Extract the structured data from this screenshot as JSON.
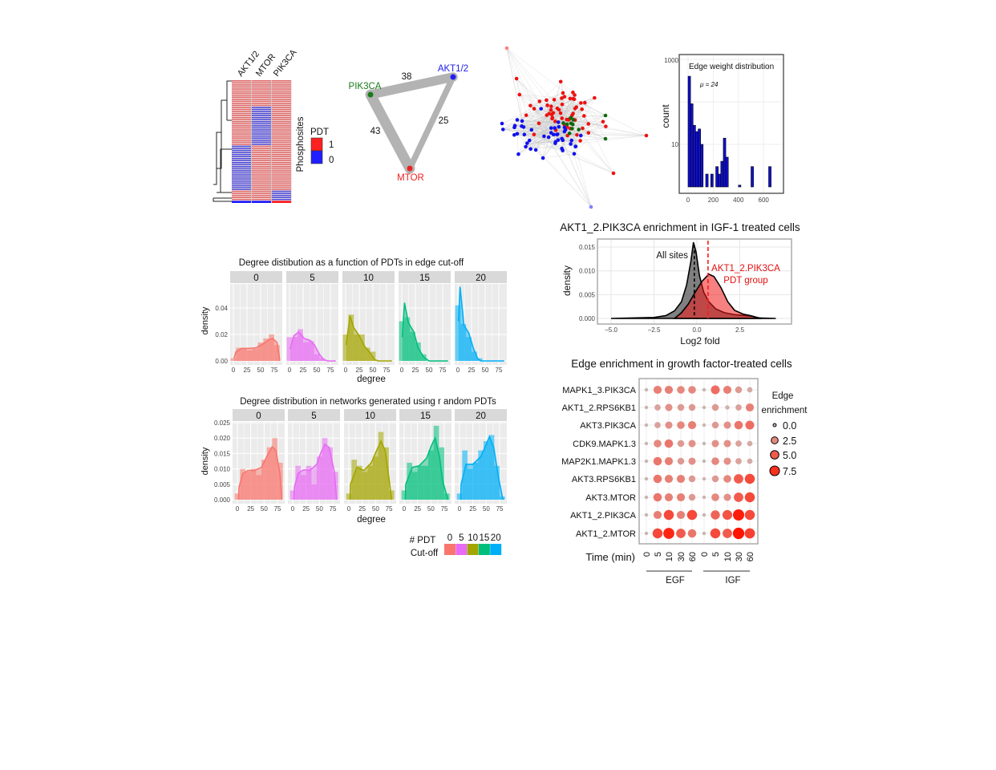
{
  "chart_data": [
    {
      "type": "heatmap",
      "columns": [
        "AKT1/2",
        "MTOR",
        "PIK3CA"
      ],
      "ylabel": "Phosphosites",
      "legend": {
        "title": "PDT",
        "entries": [
          {
            "label": "1",
            "color": "#ff2020"
          },
          {
            "label": "0",
            "color": "#2020ff"
          }
        ]
      },
      "colors": {
        "1": "#e06a6a",
        "0": "#4a4ad8"
      },
      "runs": {
        "AKT1/2": [
          [
            1,
            32
          ],
          [
            0,
            22
          ],
          [
            1,
            5
          ],
          [
            0,
            1
          ]
        ],
        "MTOR": [
          [
            1,
            13
          ],
          [
            0,
            19
          ],
          [
            1,
            27
          ],
          [
            0,
            1
          ]
        ],
        "PIK3CA": [
          [
            1,
            54
          ],
          [
            0,
            5
          ],
          [
            1,
            1
          ]
        ]
      }
    },
    {
      "type": "network",
      "nodes": [
        {
          "label": "PIK3CA",
          "color": "#1a7a1a"
        },
        {
          "label": "AKT1/2",
          "color": "#2020ee"
        },
        {
          "label": "MTOR",
          "color": "#ee2020"
        }
      ],
      "edges": [
        {
          "from": "PIK3CA",
          "to": "AKT1/2",
          "weight": "38"
        },
        {
          "from": "AKT1/2",
          "to": "MTOR",
          "weight": "25"
        },
        {
          "from": "PIK3CA",
          "to": "MTOR",
          "weight": "43"
        }
      ]
    },
    {
      "type": "network",
      "node_colors": [
        "#ee1111",
        "#1111ee",
        "#0a6a0a"
      ]
    },
    {
      "type": "bar",
      "title": "Edge weight distribution",
      "annotation": "μ  = 24",
      "ylabel": "count",
      "yscale": "log",
      "yticks": [
        "10",
        "1000"
      ],
      "xticks": [
        "0",
        "200",
        "400",
        "600"
      ],
      "bar_color": "#1010d0",
      "bins": [
        [
          0,
          400
        ],
        [
          20,
          90
        ],
        [
          40,
          28
        ],
        [
          60,
          20
        ],
        [
          80,
          23
        ],
        [
          100,
          10
        ],
        [
          140,
          2
        ],
        [
          180,
          2
        ],
        [
          220,
          3
        ],
        [
          240,
          2
        ],
        [
          260,
          4
        ],
        [
          280,
          14
        ],
        [
          300,
          5
        ],
        [
          400,
          1.1
        ],
        [
          500,
          3
        ],
        [
          640,
          3
        ]
      ]
    },
    {
      "type": "area",
      "title": "AKT1_2.PIK3CA enrichment in IGF-1 treated cells",
      "xlabel": "Log2 fold",
      "ylabel": "density",
      "xticks": [
        "−5.0",
        "−2.5",
        "0.0",
        "2.5"
      ],
      "yticks": [
        "0.000",
        "0.005",
        "0.010",
        "0.015"
      ],
      "series": [
        {
          "name": "All sites",
          "color": "#555555",
          "mean": -0.15,
          "points": [
            [
              -5,
              0
            ],
            [
              -2.5,
              0.0002
            ],
            [
              -1.8,
              0.0006
            ],
            [
              -1.3,
              0.0016
            ],
            [
              -0.9,
              0.0035
            ],
            [
              -0.6,
              0.007
            ],
            [
              -0.35,
              0.012
            ],
            [
              -0.2,
              0.016
            ],
            [
              -0.05,
              0.014
            ],
            [
              0.15,
              0.009
            ],
            [
              0.4,
              0.0055
            ],
            [
              0.7,
              0.0035
            ],
            [
              1.1,
              0.002
            ],
            [
              1.6,
              0.0012
            ],
            [
              2.2,
              0.0008
            ],
            [
              2.8,
              0.0006
            ],
            [
              3.2,
              0.0005
            ],
            [
              3.6,
              0.0001
            ],
            [
              4.6,
              0
            ]
          ]
        },
        {
          "name": "AKT1_2.PIK3CA\nPDT group",
          "label_lines": [
            "AKT1_2.PIK3CA",
            "PDT group"
          ],
          "color": "#e81010",
          "mean": 0.65,
          "points": [
            [
              -1.3,
              0
            ],
            [
              -0.9,
              0.0012
            ],
            [
              -0.5,
              0.003
            ],
            [
              -0.1,
              0.0055
            ],
            [
              0.3,
              0.0078
            ],
            [
              0.7,
              0.0093
            ],
            [
              1.0,
              0.0088
            ],
            [
              1.4,
              0.0065
            ],
            [
              1.8,
              0.0035
            ],
            [
              2.2,
              0.0017
            ],
            [
              2.7,
              0.0009
            ],
            [
              3.1,
              0.0006
            ],
            [
              3.5,
              0.0002
            ],
            [
              3.8,
              0
            ]
          ]
        }
      ]
    },
    {
      "type": "scatter",
      "title": "Edge enrichment in growth factor-treated cells",
      "xlabel": "Time (min)",
      "groups": [
        "EGF",
        "IGF"
      ],
      "times": [
        "0",
        "5",
        "10",
        "30",
        "60"
      ],
      "rows": [
        "MAPK1_3.PIK3CA",
        "AKT1_2.RPS6KB1",
        "AKT3.PIK3CA",
        "CDK9.MAPK1.3",
        "MAP2K1.MAPK1.3",
        "AKT3.RPS6KB1",
        "AKT3.MTOR",
        "AKT1_2.PIK3CA",
        "AKT1_2.MTOR"
      ],
      "values": [
        [
          0,
          3,
          3,
          2.5,
          2.5,
          0,
          4,
          3,
          1.5,
          0.5
        ],
        [
          0,
          1,
          2,
          1.5,
          1.5,
          0,
          1.5,
          0.1,
          1,
          3
        ],
        [
          0,
          1,
          2,
          2.5,
          3,
          0,
          1.5,
          2,
          3.5,
          4
        ],
        [
          0,
          2.5,
          3.5,
          1.5,
          2,
          0,
          2,
          2,
          1,
          0.5
        ],
        [
          0,
          3.5,
          3,
          1.5,
          2,
          0,
          2.5,
          2,
          1,
          0.5
        ],
        [
          0,
          3.5,
          3,
          3,
          1.5,
          0,
          1.5,
          2.5,
          5,
          6
        ],
        [
          0,
          3.5,
          3,
          3,
          1.5,
          0,
          2.5,
          2,
          5,
          6
        ],
        [
          0,
          3,
          6,
          3,
          6,
          0,
          4.5,
          5.5,
          8.5,
          6
        ],
        [
          0,
          6,
          8,
          5,
          3.5,
          0,
          6,
          5,
          9,
          6.5
        ]
      ],
      "legend": {
        "title_lines": [
          "Edge",
          "enrichment"
        ],
        "values": [
          "0.0",
          "2.5",
          "5.0",
          "7.5"
        ]
      }
    },
    {
      "type": "bar",
      "title": "Degree distibution as a function of PDTs in edge cut-off",
      "xlabel": "degree",
      "ylabel": "density",
      "yticks": [
        "0.00",
        "0.02",
        "0.04"
      ],
      "ytick_values": [
        0,
        0.02,
        0.04
      ],
      "xticks": [
        "0",
        "25",
        "50",
        "75"
      ],
      "facets": [
        {
          "label": "0",
          "color": "#F8766D",
          "hist": [
            0.002,
            0.01,
            0.01,
            0.008,
            0.009,
            0.014,
            0.017,
            0.02,
            0.012
          ],
          "curve": [
            [
              1,
              0.002
            ],
            [
              5,
              0.007
            ],
            [
              15,
              0.0095
            ],
            [
              30,
              0.0095
            ],
            [
              42,
              0.01
            ],
            [
              55,
              0.013
            ],
            [
              65,
              0.016
            ],
            [
              72,
              0.017
            ],
            [
              80,
              0.014
            ],
            [
              84,
              0.004
            ],
            [
              85,
              0
            ]
          ]
        },
        {
          "label": "5",
          "color": "#E76BF3",
          "hist": [
            0.018,
            0.018,
            0.024,
            0.014,
            0.015,
            0.005,
            0.002,
            0,
            0
          ],
          "curve": [
            [
              1,
              0.009
            ],
            [
              8,
              0.019
            ],
            [
              17,
              0.022
            ],
            [
              27,
              0.017
            ],
            [
              38,
              0.0155
            ],
            [
              46,
              0.012
            ],
            [
              55,
              0.005
            ],
            [
              63,
              0.001
            ],
            [
              70,
              0
            ],
            [
              85,
              0
            ]
          ]
        },
        {
          "label": "10",
          "color": "#A3A500",
          "hist": [
            0.02,
            0.035,
            0.02,
            0.02,
            0.01,
            0.007,
            0,
            0,
            0
          ],
          "curve": [
            [
              1,
              0.012
            ],
            [
              8,
              0.034
            ],
            [
              15,
              0.025
            ],
            [
              25,
              0.019
            ],
            [
              35,
              0.011
            ],
            [
              45,
              0.006
            ],
            [
              53,
              0.001
            ],
            [
              60,
              0
            ],
            [
              85,
              0
            ]
          ]
        },
        {
          "label": "15",
          "color": "#00BF7D",
          "hist": [
            0.03,
            0.033,
            0.022,
            0.014,
            0.005,
            0,
            0,
            0,
            0
          ],
          "curve": [
            [
              1,
              0.018
            ],
            [
              5,
              0.044
            ],
            [
              12,
              0.029
            ],
            [
              22,
              0.022
            ],
            [
              30,
              0.01
            ],
            [
              40,
              0.003
            ],
            [
              50,
              0
            ],
            [
              85,
              0
            ]
          ]
        },
        {
          "label": "20",
          "color": "#00B0F6",
          "hist": [
            0.042,
            0.028,
            0.018,
            0.007,
            0.002,
            0,
            0,
            0,
            0
          ],
          "curve": [
            [
              1,
              0.03
            ],
            [
              4,
              0.056
            ],
            [
              11,
              0.027
            ],
            [
              20,
              0.021
            ],
            [
              28,
              0.01
            ],
            [
              36,
              0.002
            ],
            [
              42,
              0
            ],
            [
              85,
              0
            ]
          ]
        }
      ]
    },
    {
      "type": "bar",
      "title": "Degree distribution in networks generated using r andom PDTs",
      "xlabel": "degree",
      "ylabel": "density",
      "yticks": [
        "0.000",
        "0.005",
        "0.010",
        "0.015",
        "0.020",
        "0.025"
      ],
      "ytick_values": [
        0,
        0.005,
        0.01,
        0.015,
        0.02,
        0.025
      ],
      "xticks": [
        "0",
        "25",
        "50",
        "75"
      ],
      "facets": [
        {
          "label": "0",
          "color": "#F8766D",
          "hist": [
            0.002,
            0.01,
            0.009,
            0.01,
            0.008,
            0.013,
            0.017,
            0.02,
            0.012
          ],
          "curve": [
            [
              2,
              0
            ],
            [
              3,
              0.004
            ],
            [
              10,
              0.0085
            ],
            [
              20,
              0.0095
            ],
            [
              32,
              0.0095
            ],
            [
              45,
              0.0105
            ],
            [
              55,
              0.014
            ],
            [
              65,
              0.0172
            ],
            [
              72,
              0.016
            ],
            [
              80,
              0.008
            ],
            [
              83,
              0
            ]
          ]
        },
        {
          "label": "5",
          "color": "#E76BF3",
          "hist": [
            0.003,
            0.011,
            0.008,
            0.011,
            0.005,
            0.014,
            0.02,
            0.017,
            0.009
          ],
          "curve": [
            [
              2,
              0
            ],
            [
              3,
              0.004
            ],
            [
              10,
              0.0085
            ],
            [
              20,
              0.0097
            ],
            [
              32,
              0.0095
            ],
            [
              45,
              0.0115
            ],
            [
              52,
              0.015
            ],
            [
              60,
              0.018
            ],
            [
              68,
              0.017
            ],
            [
              78,
              0.009
            ],
            [
              82,
              0
            ]
          ]
        },
        {
          "label": "10",
          "color": "#A3A500",
          "hist": [
            0.002,
            0.013,
            0.011,
            0.009,
            0.011,
            0.014,
            0.022,
            0.017,
            0.003
          ],
          "curve": [
            [
              2,
              0
            ],
            [
              3,
              0.005
            ],
            [
              15,
              0.0105
            ],
            [
              28,
              0.0095
            ],
            [
              42,
              0.012
            ],
            [
              52,
              0.016
            ],
            [
              60,
              0.019
            ],
            [
              68,
              0.016
            ],
            [
              75,
              0.007
            ],
            [
              80,
              0
            ]
          ]
        },
        {
          "label": "15",
          "color": "#00BF7D",
          "hist": [
            0.003,
            0.012,
            0.009,
            0.011,
            0.011,
            0.016,
            0.024,
            0.017,
            0.002
          ],
          "curve": [
            [
              2,
              0
            ],
            [
              3,
              0.005
            ],
            [
              15,
              0.0105
            ],
            [
              28,
              0.011
            ],
            [
              42,
              0.0135
            ],
            [
              52,
              0.018
            ],
            [
              58,
              0.02
            ],
            [
              66,
              0.014
            ],
            [
              72,
              0.006
            ],
            [
              82,
              0
            ]
          ]
        },
        {
          "label": "20",
          "color": "#00B0F6",
          "hist": [
            0.002,
            0.016,
            0.01,
            0.012,
            0.016,
            0.019,
            0.021,
            0.011,
            0.001
          ],
          "curve": [
            [
              2,
              0
            ],
            [
              3,
              0.005
            ],
            [
              12,
              0.0115
            ],
            [
              25,
              0.0115
            ],
            [
              40,
              0.014
            ],
            [
              50,
              0.018
            ],
            [
              56,
              0.0205
            ],
            [
              64,
              0.017
            ],
            [
              72,
              0.008
            ],
            [
              80,
              0.001
            ],
            [
              82,
              0
            ]
          ]
        }
      ],
      "legend": {
        "title_lines": [
          "# PDT",
          "Cut-off"
        ],
        "entries": [
          "0",
          "5",
          "10",
          "15",
          "20"
        ]
      }
    }
  ]
}
